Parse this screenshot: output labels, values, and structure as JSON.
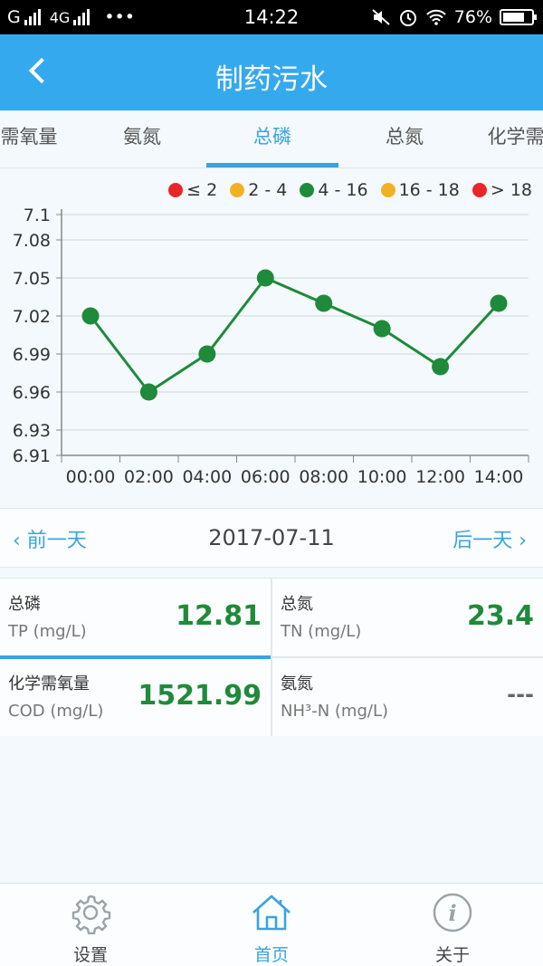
{
  "status_bar": {
    "carrier": "G",
    "network": "4G",
    "dots": "•••",
    "time": "14:22",
    "battery": "76%",
    "battery_level": 0.76
  },
  "header": {
    "title": "制药污水",
    "back_icon": "chevron-left-icon"
  },
  "tabs": [
    {
      "label": "需氧量",
      "active": false
    },
    {
      "label": "氨氮",
      "active": false
    },
    {
      "label": "总磷",
      "active": true
    },
    {
      "label": "总氮",
      "active": false
    },
    {
      "label": "化学需",
      "active": false
    }
  ],
  "chart_data": {
    "type": "line",
    "legend": [
      {
        "label": "≤ 2",
        "color": "#e8262a"
      },
      {
        "label": "2 - 4",
        "color": "#f2b125"
      },
      {
        "label": "4 - 16",
        "color": "#1f8a3a"
      },
      {
        "label": "16 - 18",
        "color": "#f2b125"
      },
      {
        "label": "> 18",
        "color": "#e8262a"
      }
    ],
    "x": [
      "00:00",
      "02:00",
      "04:00",
      "06:00",
      "08:00",
      "10:00",
      "12:00",
      "14:00"
    ],
    "y": [
      7.02,
      6.96,
      6.99,
      7.05,
      7.03,
      7.01,
      6.98,
      7.03
    ],
    "y_ticks": [
      "7.1",
      "7.08",
      "7.05",
      "7.02",
      "6.99",
      "6.96",
      "6.93",
      "6.91"
    ],
    "ylim": [
      6.91,
      7.1
    ],
    "line_color": "#1f8a3a",
    "grid": true
  },
  "date_nav": {
    "prev_label": "‹ 前一天",
    "date": "2017-07-11",
    "next_label": "后一天 ›"
  },
  "metrics": [
    {
      "name": "总磷",
      "unit": "TP (mg/L)",
      "value": "12.81"
    },
    {
      "name": "总氮",
      "unit": "TN (mg/L)",
      "value": "23.4"
    },
    {
      "name": "化学需氧量",
      "unit": "COD (mg/L)",
      "value": "1521.99"
    },
    {
      "name": "氨氮",
      "unit": "NH³-N (mg/L)",
      "value": "---"
    }
  ],
  "bottom_nav": [
    {
      "label": "设置",
      "icon": "gear-icon",
      "active": false
    },
    {
      "label": "首页",
      "icon": "home-icon",
      "active": true
    },
    {
      "label": "关于",
      "icon": "info-icon",
      "active": false
    }
  ],
  "colors": {
    "header": "#35a9ee",
    "accent": "#3aa3df",
    "value_green": "#1f8a3a"
  }
}
